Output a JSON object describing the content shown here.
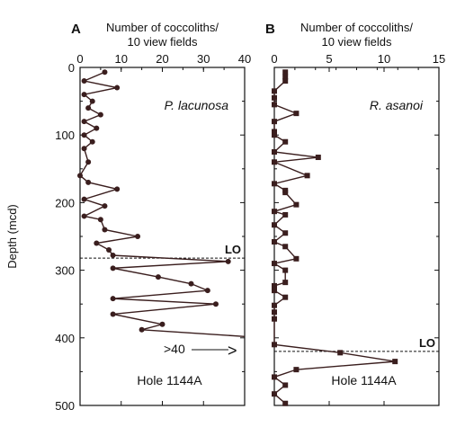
{
  "figure": {
    "ylabel": "Depth (mcd)",
    "y_ticks": [
      "0",
      "100",
      "200",
      "300",
      "400",
      "500"
    ]
  },
  "chart_data": [
    {
      "type": "line",
      "panel_label": "A",
      "title_line1": "Number of coccoliths/",
      "title_line2": "10 view fields",
      "xlim": [
        0,
        40
      ],
      "ylim": [
        0,
        500
      ],
      "y_inverted": true,
      "x_ticks": [
        "0",
        "10",
        "20",
        "30",
        "40"
      ],
      "marker": "circle",
      "species_label": "P. lacunosa",
      "hole_label": "Hole 1144A",
      "lo_label": "LO",
      "lo_depth": 282,
      "overflow_label": ">40",
      "overflow_marker": ">",
      "series": [
        {
          "x": [
            6,
            1,
            9,
            1,
            3,
            2,
            5,
            1,
            4,
            1,
            3,
            1,
            2,
            0,
            2,
            9,
            1,
            6,
            1,
            5,
            6,
            14,
            4,
            7,
            8,
            36,
            8,
            19,
            27,
            31,
            8,
            33,
            8,
            20,
            15,
            40
          ],
          "y": [
            7,
            20,
            30,
            40,
            50,
            60,
            70,
            80,
            90,
            100,
            110,
            120,
            140,
            160,
            170,
            180,
            195,
            205,
            220,
            225,
            240,
            250,
            260,
            270,
            278,
            287,
            297,
            310,
            320,
            330,
            342,
            350,
            365,
            380,
            388,
            398
          ]
        }
      ]
    },
    {
      "type": "line",
      "panel_label": "B",
      "title_line1": "Number of coccoliths/",
      "title_line2": "10 view fields",
      "xlim": [
        0,
        15
      ],
      "ylim": [
        0,
        500
      ],
      "y_inverted": true,
      "x_ticks": [
        "0",
        "5",
        "10",
        "15"
      ],
      "marker": "square",
      "species_label": "R. asanoi",
      "hole_label": "Hole 1144A",
      "lo_label": "LO",
      "lo_depth": 420,
      "series": [
        {
          "x": [
            1,
            1,
            1,
            0,
            0,
            0,
            2,
            0,
            0,
            0,
            1,
            0,
            4,
            0,
            3,
            0,
            1,
            1,
            2,
            0,
            1,
            0,
            1,
            0,
            1,
            2,
            0,
            1,
            1,
            0,
            0,
            1,
            0,
            0,
            0,
            0,
            6,
            11,
            2,
            0,
            1,
            0,
            1
          ],
          "y": [
            7,
            14,
            20,
            35,
            45,
            55,
            68,
            80,
            95,
            100,
            110,
            125,
            133,
            140,
            160,
            172,
            182,
            185,
            203,
            213,
            218,
            233,
            245,
            258,
            265,
            283,
            290,
            300,
            318,
            323,
            330,
            340,
            352,
            362,
            372,
            410,
            422,
            435,
            447,
            458,
            470,
            483,
            497
          ]
        }
      ]
    }
  ]
}
